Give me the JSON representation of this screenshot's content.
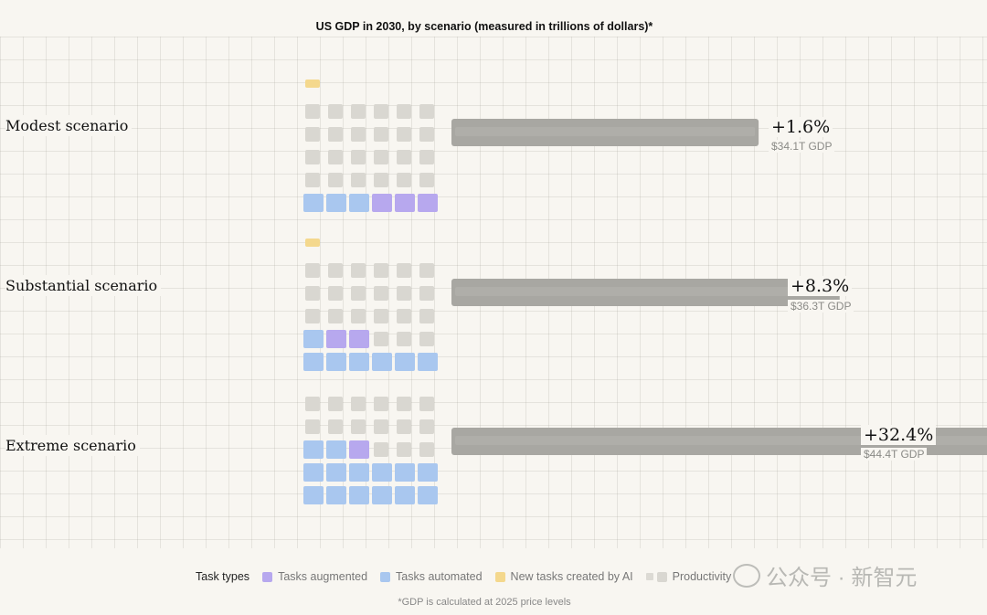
{
  "title": "US GDP in 2030, by scenario (measured in trillions of dollars)*",
  "colors": {
    "augmented": "#b7a8ee",
    "automated": "#a9c7ef",
    "new_tasks": "#f4d88d",
    "productivity": "#d9d7d1",
    "bar": "#a8a7a2"
  },
  "chart_data": {
    "type": "bar",
    "orientation": "horizontal",
    "categories": [
      "Modest scenario",
      "Substantial scenario",
      "Extreme scenario"
    ],
    "values": [
      34.1,
      36.3,
      44.4
    ],
    "value_labels": [
      "+1.6%",
      "+8.3%",
      "+32.4%"
    ],
    "gdp_labels": [
      "$34.1T GDP",
      "$36.3T GDP",
      "$44.4T GDP"
    ],
    "title": "US GDP in 2030, by scenario (measured in trillions of dollars)*",
    "xlabel": "",
    "ylabel": "",
    "grid": true,
    "task_blocks": [
      {
        "scenario": "Modest scenario",
        "rows": [
          [
            "new",
            "",
            "",
            "",
            "",
            ""
          ],
          [
            "prod",
            "prod",
            "prod",
            "prod",
            "prod",
            "prod"
          ],
          [
            "prod",
            "prod",
            "prod",
            "prod",
            "prod",
            "prod"
          ],
          [
            "prod",
            "prod",
            "prod",
            "prod",
            "prod",
            "prod"
          ],
          [
            "prod",
            "prod",
            "prod",
            "prod",
            "prod",
            "prod"
          ],
          [
            "auto",
            "auto",
            "auto",
            "aug",
            "aug",
            "aug"
          ]
        ]
      },
      {
        "scenario": "Substantial scenario",
        "rows": [
          [
            "new",
            "",
            "",
            "",
            "",
            ""
          ],
          [
            "prod",
            "prod",
            "prod",
            "prod",
            "prod",
            "prod"
          ],
          [
            "prod",
            "prod",
            "prod",
            "prod",
            "prod",
            "prod"
          ],
          [
            "prod",
            "prod",
            "prod",
            "prod",
            "prod",
            "prod"
          ],
          [
            "auto",
            "aug",
            "aug",
            "prod",
            "prod",
            "prod"
          ],
          [
            "auto",
            "auto",
            "auto",
            "auto",
            "auto",
            "auto"
          ]
        ]
      },
      {
        "scenario": "Extreme scenario",
        "rows": [
          [
            "prod",
            "prod",
            "prod",
            "prod",
            "prod",
            "prod"
          ],
          [
            "prod",
            "prod",
            "prod",
            "prod",
            "prod",
            "prod"
          ],
          [
            "auto",
            "auto",
            "aug",
            "prod",
            "prod",
            "prod"
          ],
          [
            "auto",
            "auto",
            "auto",
            "auto",
            "auto",
            "auto"
          ],
          [
            "auto",
            "auto",
            "auto",
            "auto",
            "auto",
            "auto"
          ]
        ]
      }
    ]
  },
  "legend": {
    "title": "Task types",
    "items": [
      "Tasks augmented",
      "Tasks automated",
      "New tasks created by AI",
      "Productivity"
    ]
  },
  "footnote": "*GDP is calculated at 2025 price levels",
  "watermark": "公众号 · 新智元"
}
